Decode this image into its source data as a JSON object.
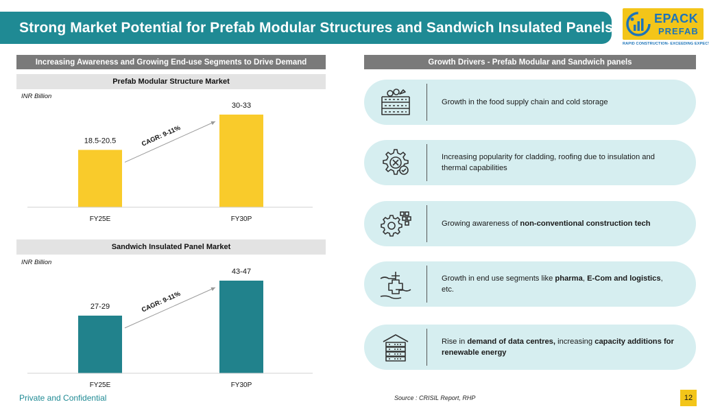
{
  "header": {
    "title": "Strong Market Potential for Prefab Modular Structures and Sandwich Insulated Panels"
  },
  "logo": {
    "word1": "EPACK",
    "word2": "PREFAB",
    "tagline": "RAPID CONSTRUCTION- EXCEEDING EXPECTATIONS"
  },
  "left": {
    "section_title": "Increasing Awareness and Growing End-use Segments to Drive Demand"
  },
  "right": {
    "section_title": "Growth Drivers - Prefab Modular and Sandwich panels",
    "drivers": [
      {
        "icon": "crate-icon",
        "parts": [
          "Growth in the food supply chain and cold storage"
        ]
      },
      {
        "icon": "gear-tools-icon",
        "parts": [
          "Increasing popularity for cladding, roofing due to insulation and thermal capabilities"
        ]
      },
      {
        "icon": "gear-blocks-icon",
        "parts": [
          "Growing awareness of ",
          "non-conventional construction tech"
        ]
      },
      {
        "icon": "hands-medical-icon",
        "parts": [
          "Growth in end use segments like ",
          "pharma",
          ", ",
          "E-Com and logistics",
          ", etc."
        ]
      },
      {
        "icon": "data-centre-icon",
        "parts": [
          "Rise in ",
          "demand of data centres,",
          " increasing ",
          "capacity additions for renewable energy"
        ]
      }
    ]
  },
  "chart_data": [
    {
      "type": "bar",
      "title": "Prefab Modular Structure Market",
      "unit": "INR Billion",
      "categories": [
        "FY25E",
        "FY30P"
      ],
      "values": [
        19.5,
        31.5
      ],
      "data_labels": [
        "18.5-20.5",
        "30-33"
      ],
      "annotation": "CAGR: 9-11%",
      "color": "#f9cb2b",
      "ylim": [
        0,
        35
      ]
    },
    {
      "type": "bar",
      "title": "Sandwich Insulated Panel Market",
      "unit": "INR Billion",
      "categories": [
        "FY25E",
        "FY30P"
      ],
      "values": [
        28,
        45
      ],
      "data_labels": [
        "27-29",
        "43-47"
      ],
      "annotation": "CAGR: 9-11%",
      "color": "#21828c",
      "ylim": [
        0,
        50
      ]
    }
  ],
  "footer": {
    "confidential": "Private and Confidential",
    "source": "Source : CRISIL Report, RHP",
    "page_number": "12"
  }
}
